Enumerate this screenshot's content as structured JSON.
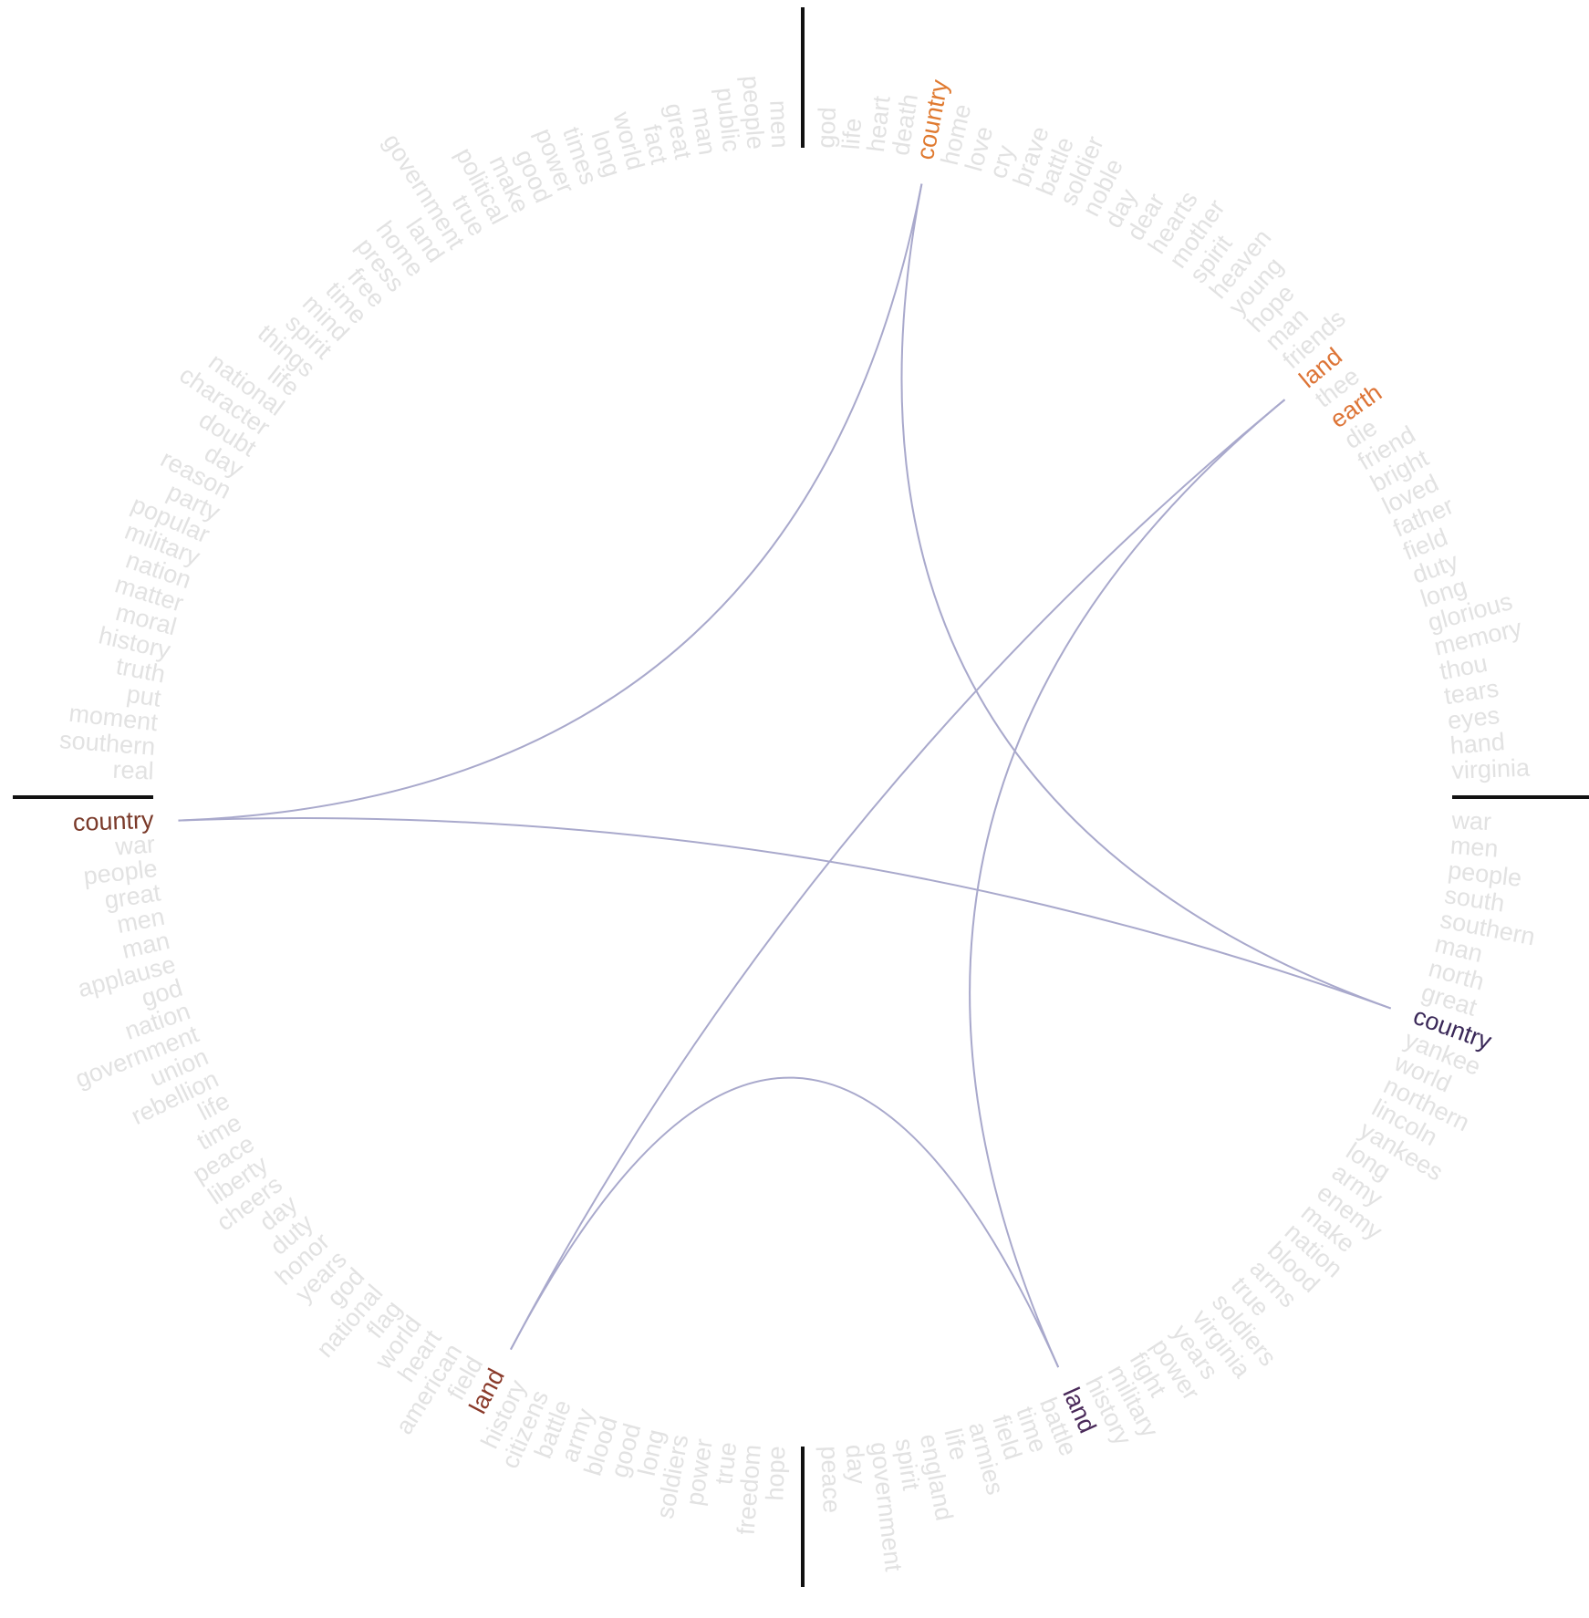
{
  "link_color": "#a9a9cc",
  "word_color": "#e2e2e2",
  "axis_color": "#111111",
  "quadrants": [
    {
      "words": [
        "god",
        "life",
        "heart",
        "death",
        {
          "text": "country",
          "color": "#e07a30"
        },
        "home",
        "love",
        "cry",
        "brave",
        "battle",
        "soldier",
        "noble",
        "day",
        "dear",
        "hearts",
        "mother",
        "spirit",
        "heaven",
        "young",
        "hope",
        "man",
        "friends",
        {
          "text": "land",
          "color": "#dd7436"
        },
        "thee",
        {
          "text": "earth",
          "color": "#dd7436"
        },
        "die",
        "friend",
        "bright",
        "loved",
        "father",
        "field",
        "duty",
        "long",
        "glorious",
        "memory",
        "thou",
        "tears",
        "eyes",
        "hand",
        "virginia"
      ]
    },
    {
      "words": [
        "war",
        "men",
        "people",
        "south",
        "southern",
        "man",
        "north",
        "great",
        {
          "text": "country",
          "color": "#3a2858"
        },
        "yankee",
        "world",
        "northern",
        "lincoln",
        "yankees",
        "long",
        "army",
        "enemy",
        "make",
        "nation",
        "blood",
        "arms",
        "true",
        "soldiers",
        "virginia",
        "years",
        "power",
        "fight",
        "military",
        "history",
        {
          "text": "land",
          "color": "#4a2a5a"
        },
        "battle",
        "time",
        "field",
        "armies",
        "life",
        "england",
        "spirit",
        "government",
        "day",
        "peace"
      ]
    },
    {
      "words": [
        "hope",
        "freedom",
        "true",
        "power",
        "soldiers",
        "long",
        "good",
        "blood",
        "army",
        "battle",
        "citizens",
        "history",
        {
          "text": "land",
          "color": "#8a3a2a"
        },
        "field",
        "american",
        "heart",
        "world",
        "flag",
        "national",
        "god",
        "years",
        "honor",
        "duty",
        "day",
        "cheers",
        "liberty",
        "peace",
        "time",
        "life",
        "rebellion",
        "union",
        "government",
        "nation",
        "god",
        "applause",
        "man",
        "men",
        "great",
        "people",
        "war",
        {
          "text": "country",
          "color": "#7a3a2a"
        }
      ]
    },
    {
      "words": [
        "real",
        "southern",
        "moment",
        "put",
        "truth",
        "history",
        "moral",
        "matter",
        "nation",
        "military",
        "popular",
        "party",
        "reason",
        "day",
        "doubt",
        "character",
        "national",
        "life",
        "things",
        "spirit",
        "mind",
        "time",
        "free",
        "press",
        "home",
        "land",
        "government",
        "true",
        "political",
        "make",
        "good",
        "power",
        "times",
        "long",
        "world",
        "fact",
        "great",
        "man",
        "public",
        "people",
        "men"
      ]
    }
  ]
}
